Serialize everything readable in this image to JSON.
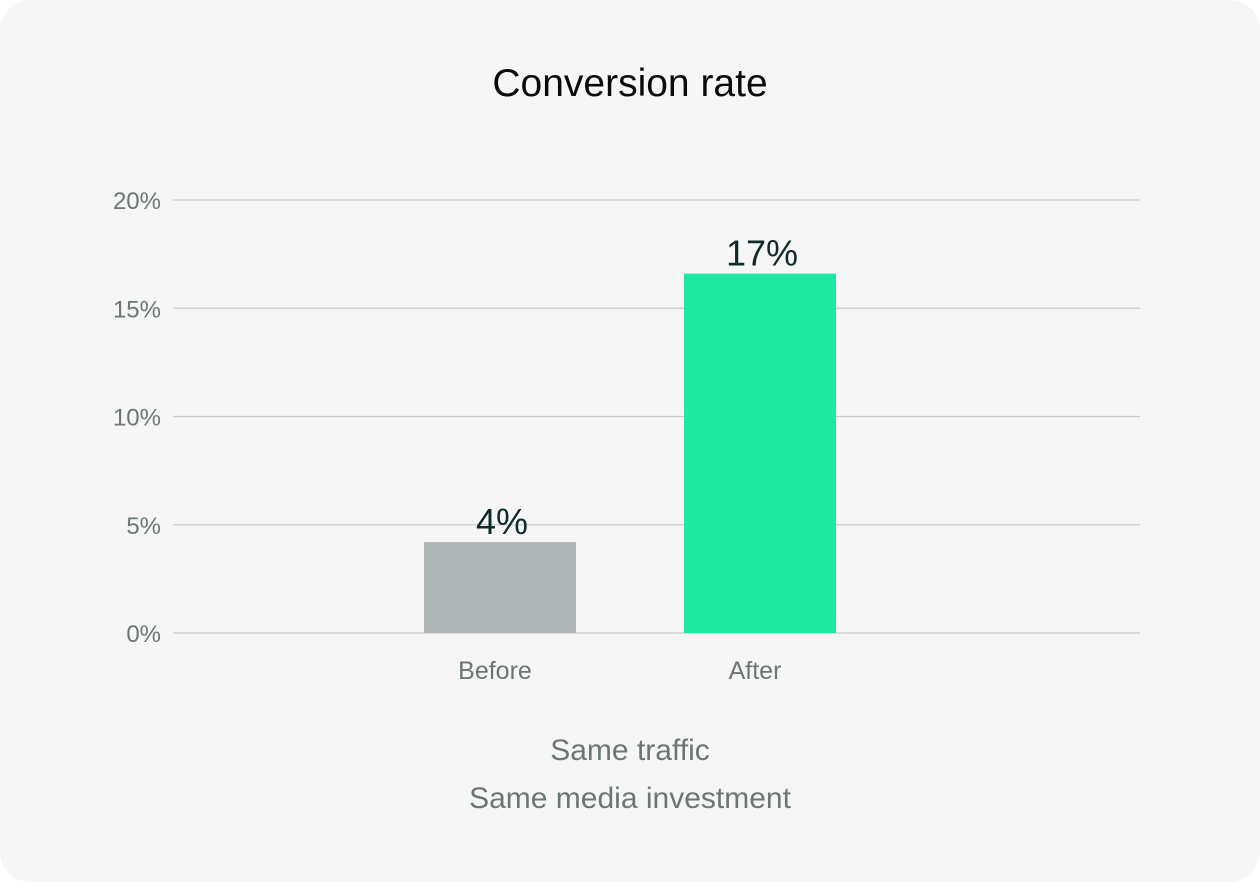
{
  "colors": {
    "background": "#f6f6f6",
    "gridline": "#c9cccb",
    "before_bar": "#aeb4b4",
    "after_bar": "#1de9a2",
    "tick_text": "#6b7775",
    "value_label": "#0e2a2a"
  },
  "chart_data": {
    "type": "bar",
    "title": "Conversion rate",
    "xlabel": "",
    "ylabel": "",
    "categories": [
      "Before",
      "After"
    ],
    "values": [
      4.2,
      16.6
    ],
    "value_labels": [
      "4%",
      "17%"
    ],
    "ylim": [
      0,
      20
    ],
    "yticks": [
      0,
      5,
      10,
      15,
      20
    ],
    "ytick_labels": [
      "0%",
      "5%",
      "10%",
      "15%",
      "20%"
    ],
    "grid": true,
    "legend": "none"
  },
  "footnotes": [
    "Same traffic",
    "Same media investment"
  ]
}
